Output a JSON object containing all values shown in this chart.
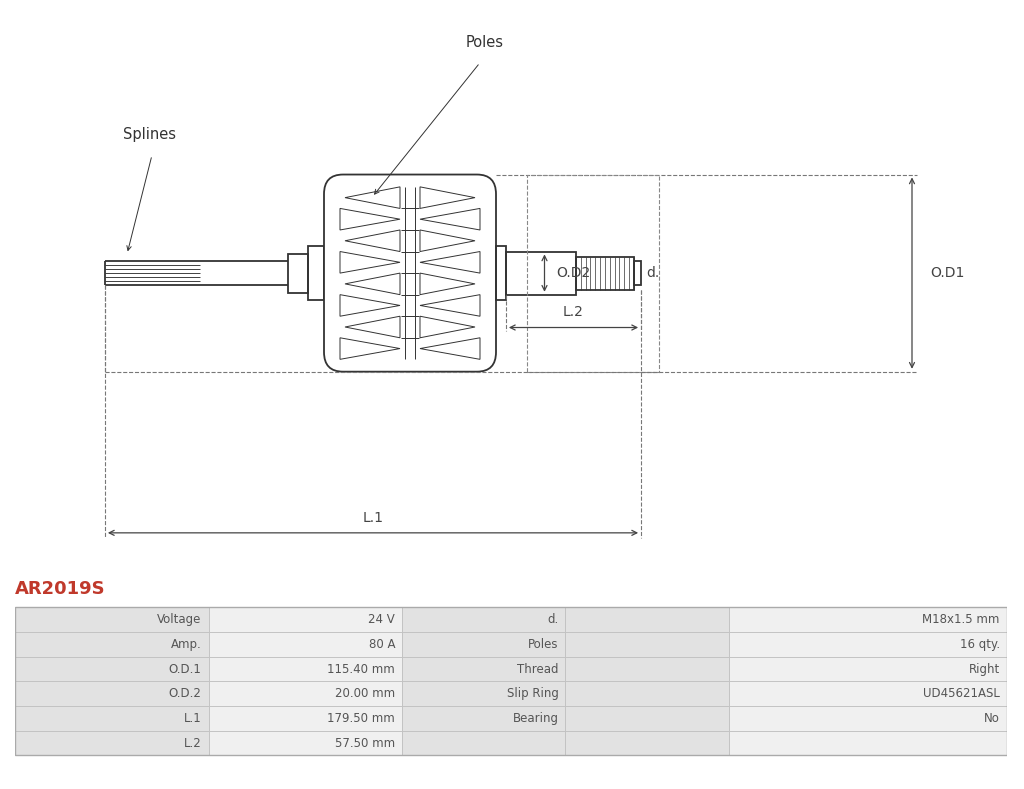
{
  "title": "AR2019S",
  "title_color": "#c0392b",
  "bg_color": "#ffffff",
  "line_color": "#333333",
  "dim_color": "#444444",
  "table_row_bg1": "#e2e2e2",
  "table_row_bg2": "#f0f0f0",
  "table_text_color": "#555555",
  "table_data": [
    [
      "Voltage",
      "24 V",
      "d.",
      "M18x1.5 mm"
    ],
    [
      "Amp.",
      "80 A",
      "Poles",
      "16 qty."
    ],
    [
      "O.D.1",
      "115.40 mm",
      "Thread",
      "Right"
    ],
    [
      "O.D.2",
      "20.00 mm",
      "Slip Ring",
      "UD45621ASL"
    ],
    [
      "L.1",
      "179.50 mm",
      "Bearing",
      "No"
    ],
    [
      "L.2",
      "57.50 mm",
      "",
      ""
    ]
  ],
  "labels": {
    "poles": "Poles",
    "splines": "Splines",
    "od1": "O.D1",
    "od2": "O.D2",
    "d": "d.",
    "l1": "L.1",
    "l2": "L.2"
  }
}
